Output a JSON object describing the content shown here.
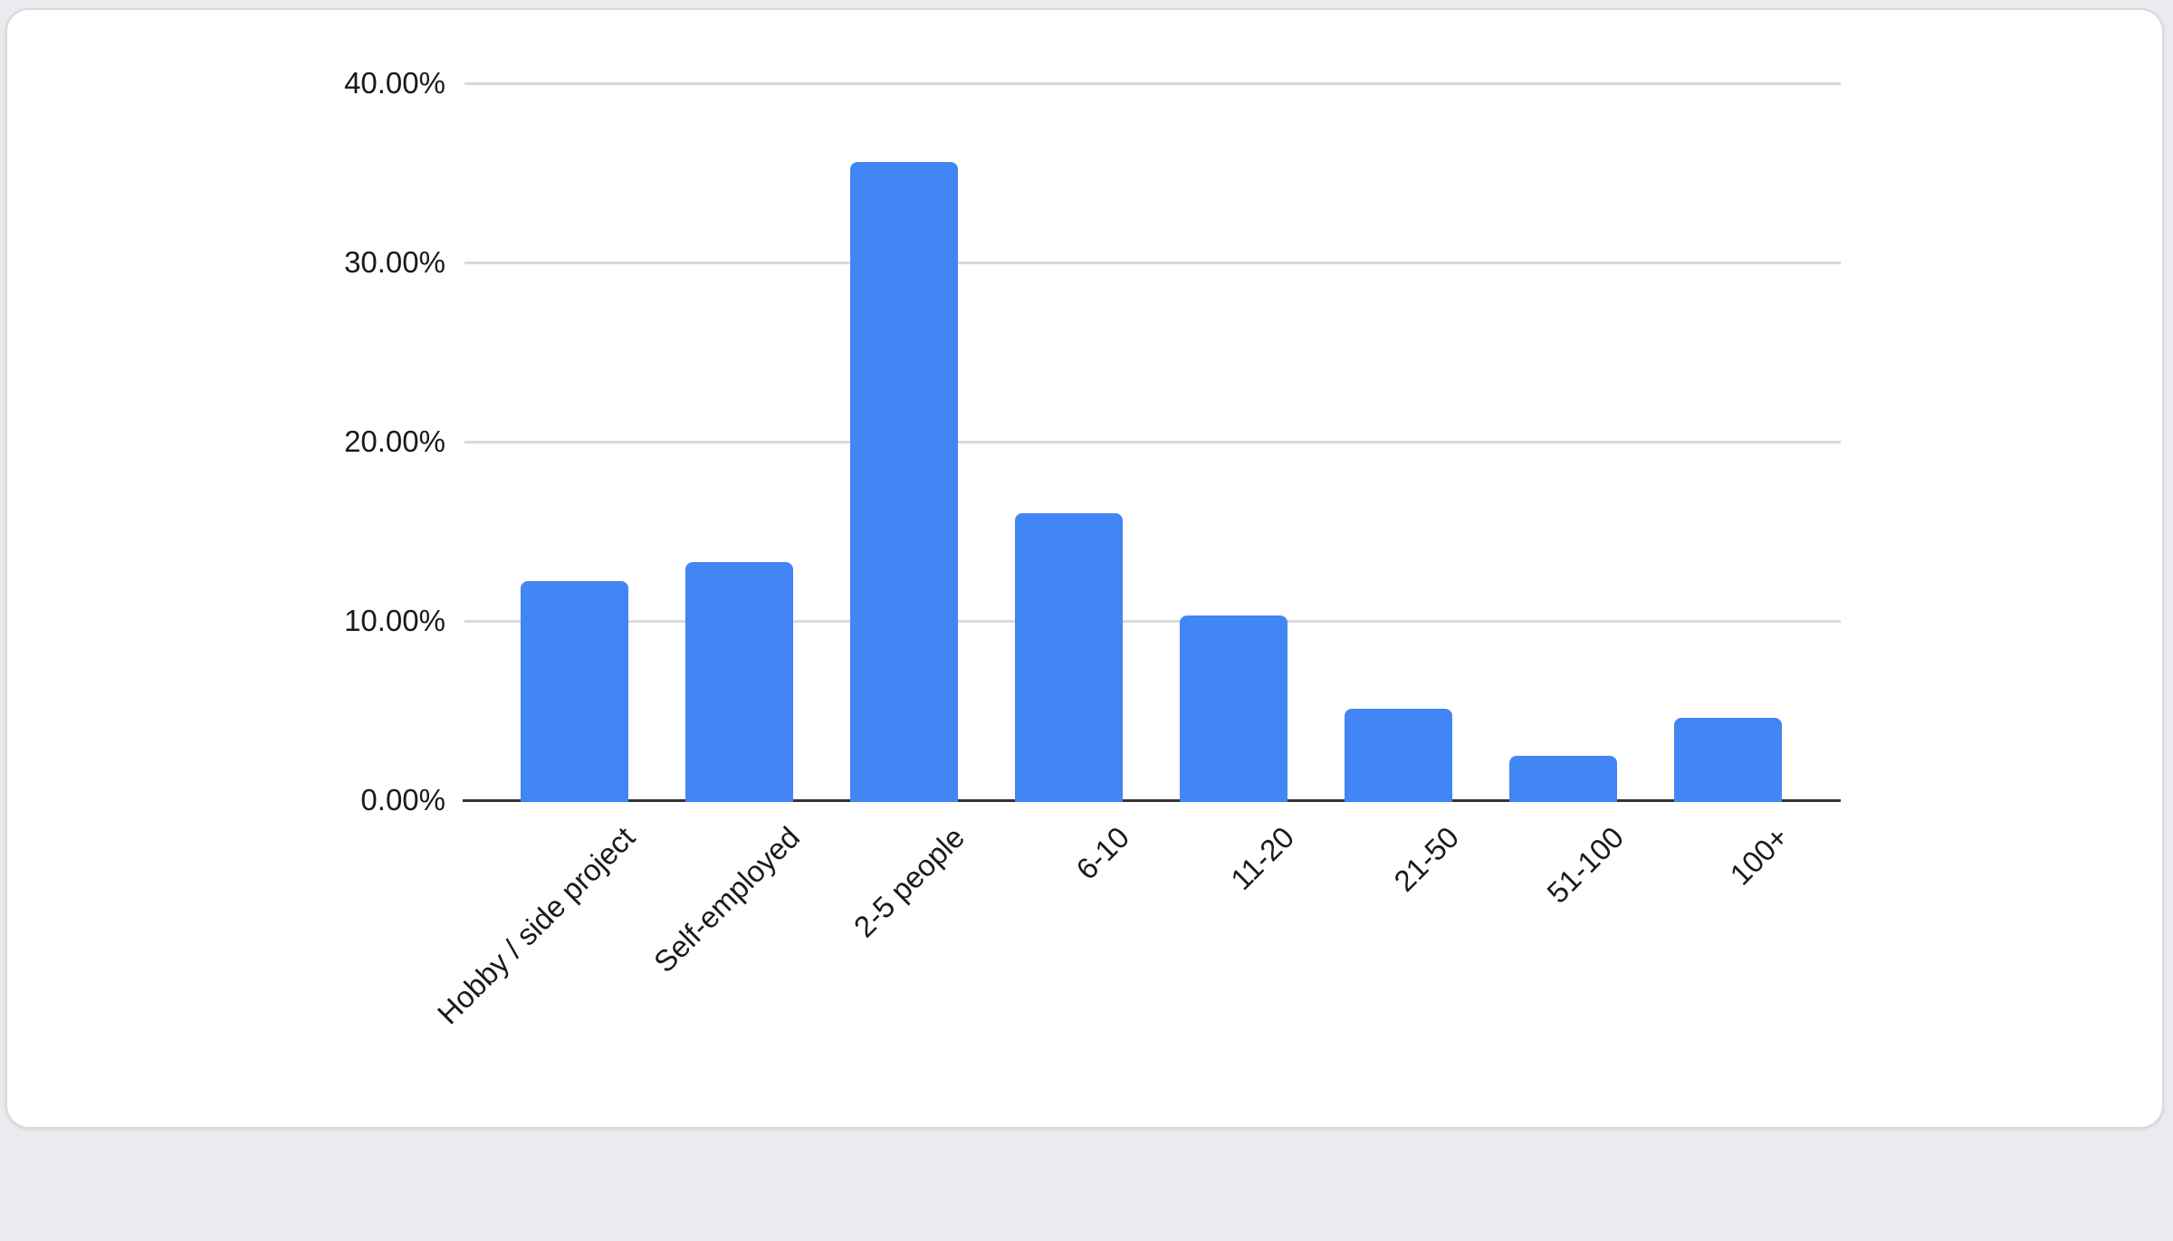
{
  "page": {
    "background_color": "#e9ebee",
    "card_color": "#ffffff",
    "card_border_color": "#d7d9dd"
  },
  "chart_data": {
    "type": "bar",
    "title": "",
    "xlabel": "",
    "ylabel": "",
    "categories": [
      "Hobby / side project",
      "Self-employed",
      "2-5 people",
      "6-10",
      "11-20",
      "21-50",
      "51-100",
      "100+"
    ],
    "values": [
      12.2,
      13.3,
      35.6,
      16.0,
      10.3,
      5.1,
      2.5,
      4.6
    ],
    "value_unit": "%",
    "ylim": [
      0,
      40
    ],
    "yticks": [
      {
        "label": "40.00%",
        "value": 40
      },
      {
        "label": "30.00%",
        "value": 30
      },
      {
        "label": "20.00%",
        "value": 20
      },
      {
        "label": "10.00%",
        "value": 10
      },
      {
        "label": "0.00%",
        "value": 0
      }
    ],
    "grid": true,
    "legend_position": "none",
    "bar_color": "#4285F4",
    "gridline_color": "#d9d9d9",
    "axis_line_color": "#333333",
    "label_color": "#1a1a1a"
  }
}
